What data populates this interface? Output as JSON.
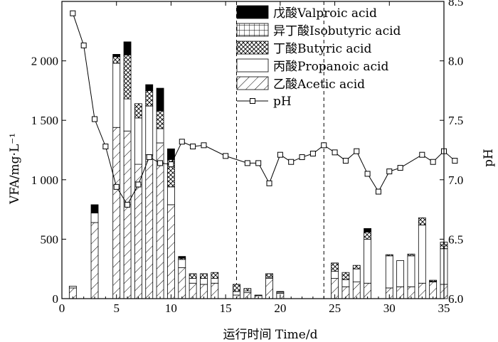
{
  "chart_data": {
    "type": "bar",
    "xlabel": "运行时间 Time/d",
    "ylabel_left": "VFA/mg·L⁻¹",
    "ylabel_right": "pH",
    "xlim": [
      0,
      35
    ],
    "ylim": [
      0,
      2500
    ],
    "y2lim": [
      6.0,
      8.5
    ],
    "xticks": [
      0,
      5,
      10,
      15,
      20,
      25,
      30,
      35
    ],
    "yticks": [
      0,
      500,
      1000,
      1500,
      2000
    ],
    "yticks_text": [
      "0",
      "500",
      "1 000",
      "1 500",
      "2 000"
    ],
    "y2ticks": [
      "6.0",
      "6.5",
      "7.0",
      "7.5",
      "8.0",
      "8.5"
    ],
    "legend_position": "top-right",
    "phase_lines_x": [
      16,
      24
    ],
    "stack_order": [
      "acetic",
      "propanoic",
      "butyric",
      "isobutyric",
      "valproic"
    ],
    "series": [
      {
        "key": "valproic",
        "name": "戊酸Valproic acid",
        "fill": "solid",
        "color": "#000000"
      },
      {
        "key": "isobutyric",
        "name": "异丁酸Isobutyric acid",
        "fill": "grid"
      },
      {
        "key": "butyric",
        "name": "丁酸Butyric acid",
        "fill": "crosshatch"
      },
      {
        "key": "propanoic",
        "name": "丙酸Propanoic acid",
        "fill": "blank"
      },
      {
        "key": "acetic",
        "name": "乙酸Acetic acid",
        "fill": "diagonal"
      }
    ],
    "bars": [
      {
        "day": 1,
        "acetic": 90,
        "propanoic": 15,
        "butyric": 0,
        "isobutyric": 0,
        "valproic": 0
      },
      {
        "day": 3,
        "acetic": 640,
        "propanoic": 80,
        "butyric": 0,
        "isobutyric": 0,
        "valproic": 70
      },
      {
        "day": 5,
        "acetic": 1440,
        "propanoic": 540,
        "butyric": 55,
        "isobutyric": 0,
        "valproic": 20
      },
      {
        "day": 6,
        "acetic": 1410,
        "propanoic": 270,
        "butyric": 370,
        "isobutyric": 0,
        "valproic": 110
      },
      {
        "day": 7,
        "acetic": 1130,
        "propanoic": 390,
        "butyric": 120,
        "isobutyric": 0,
        "valproic": 0
      },
      {
        "day": 8,
        "acetic": 1210,
        "propanoic": 410,
        "butyric": 130,
        "isobutyric": 0,
        "valproic": 50
      },
      {
        "day": 9,
        "acetic": 1310,
        "propanoic": 120,
        "butyric": 150,
        "isobutyric": 0,
        "valproic": 190
      },
      {
        "day": 10,
        "acetic": 790,
        "propanoic": 150,
        "butyric": 230,
        "isobutyric": 0,
        "valproic": 90
      },
      {
        "day": 11,
        "acetic": 260,
        "propanoic": 70,
        "butyric": 10,
        "isobutyric": 0,
        "valproic": 15
      },
      {
        "day": 12,
        "acetic": 130,
        "propanoic": 40,
        "butyric": 40,
        "isobutyric": 0,
        "valproic": 0
      },
      {
        "day": 13,
        "acetic": 120,
        "propanoic": 50,
        "butyric": 40,
        "isobutyric": 0,
        "valproic": 0
      },
      {
        "day": 14,
        "acetic": 130,
        "propanoic": 40,
        "butyric": 50,
        "isobutyric": 0,
        "valproic": 0
      },
      {
        "day": 16,
        "acetic": 30,
        "propanoic": 30,
        "butyric": 60,
        "isobutyric": 0,
        "valproic": 0
      },
      {
        "day": 17,
        "acetic": 50,
        "propanoic": 15,
        "butyric": 20,
        "isobutyric": 0,
        "valproic": 0
      },
      {
        "day": 18,
        "acetic": 25,
        "propanoic": 5,
        "butyric": 0,
        "isobutyric": 0,
        "valproic": 0
      },
      {
        "day": 19,
        "acetic": 170,
        "propanoic": 10,
        "butyric": 30,
        "isobutyric": 0,
        "valproic": 0
      },
      {
        "day": 20,
        "acetic": 45,
        "propanoic": 10,
        "butyric": 5,
        "isobutyric": 0,
        "valproic": 0
      },
      {
        "day": 25,
        "acetic": 170,
        "propanoic": 60,
        "butyric": 70,
        "isobutyric": 0,
        "valproic": 0
      },
      {
        "day": 26,
        "acetic": 100,
        "propanoic": 60,
        "butyric": 60,
        "isobutyric": 0,
        "valproic": 0
      },
      {
        "day": 27,
        "acetic": 140,
        "propanoic": 110,
        "butyric": 30,
        "isobutyric": 0,
        "valproic": 0
      },
      {
        "day": 28,
        "acetic": 130,
        "propanoic": 370,
        "butyric": 60,
        "isobutyric": 0,
        "valproic": 30
      },
      {
        "day": 30,
        "acetic": 90,
        "propanoic": 270,
        "butyric": 10,
        "isobutyric": 0,
        "valproic": 0
      },
      {
        "day": 31,
        "acetic": 100,
        "propanoic": 220,
        "butyric": 0,
        "isobutyric": 0,
        "valproic": 0
      },
      {
        "day": 32,
        "acetic": 100,
        "propanoic": 260,
        "butyric": 15,
        "isobutyric": 0,
        "valproic": 0
      },
      {
        "day": 33,
        "acetic": 130,
        "propanoic": 490,
        "butyric": 60,
        "isobutyric": 0,
        "valproic": 0
      },
      {
        "day": 34,
        "acetic": 140,
        "propanoic": 5,
        "butyric": 10,
        "isobutyric": 0,
        "valproic": 0
      },
      {
        "day": 35,
        "acetic": 120,
        "propanoic": 300,
        "butyric": 55,
        "isobutyric": 0,
        "valproic": 0
      }
    ],
    "ph": {
      "name": "pH",
      "points": [
        [
          1,
          8.4
        ],
        [
          2,
          8.13
        ],
        [
          3,
          7.51
        ],
        [
          4,
          7.28
        ],
        [
          5,
          6.94
        ],
        [
          6,
          6.79
        ],
        [
          7,
          6.96
        ],
        [
          8,
          7.19
        ],
        [
          9,
          7.14
        ],
        [
          10,
          7.13
        ],
        [
          11,
          7.32
        ],
        [
          12,
          7.28
        ],
        [
          13,
          7.29
        ],
        [
          15,
          7.2
        ],
        [
          17,
          7.14
        ],
        [
          18,
          7.14
        ],
        [
          19,
          6.97
        ],
        [
          20,
          7.21
        ],
        [
          21,
          7.15
        ],
        [
          22,
          7.19
        ],
        [
          23,
          7.22
        ],
        [
          24,
          7.29
        ],
        [
          25,
          7.23
        ],
        [
          26,
          7.16
        ],
        [
          27,
          7.24
        ],
        [
          28,
          7.05
        ],
        [
          29,
          6.9
        ],
        [
          30,
          7.07
        ],
        [
          31,
          7.1
        ],
        [
          33,
          7.21
        ],
        [
          34,
          7.15
        ],
        [
          35,
          7.24
        ],
        [
          36,
          7.16
        ]
      ]
    }
  }
}
